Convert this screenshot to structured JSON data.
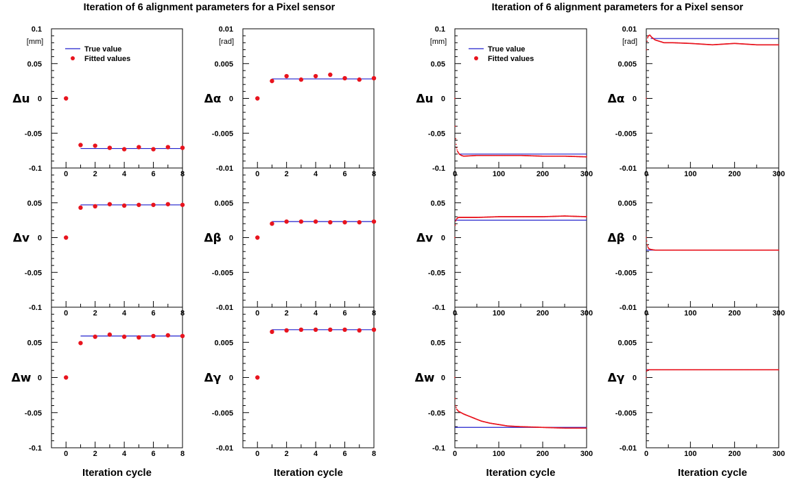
{
  "colors": {
    "true_line": "#1f1fcc",
    "fitted_points": "#e8141e",
    "axes": "#000000"
  },
  "chart_data": [
    {
      "type": "scatter",
      "title": "Iteration of 6 alignment parameters for a Pixel sensor",
      "xlabel": "Iteration cycle",
      "xlim": [
        -1,
        8
      ],
      "xticks": [
        0,
        2,
        4,
        6,
        8
      ],
      "xminor": [
        -1,
        1,
        3,
        5,
        7
      ],
      "legend": {
        "placement": "top-left",
        "true_label": "True value",
        "fitted_label": "Fitted values"
      },
      "panels": [
        {
          "ylabel": "Δu",
          "unit": "[mm]",
          "ylim": [
            -0.1,
            0.1
          ],
          "yticks": [
            -0.1,
            -0.05,
            0,
            0.05,
            0.1
          ],
          "ytick_labels": [
            "-0.1",
            "-0.05",
            "0",
            "0.05",
            "0.1"
          ],
          "true_value": -0.072,
          "true_xrange": [
            1,
            8
          ],
          "fitted": [
            [
              0,
              0
            ],
            [
              1,
              -0.067
            ],
            [
              2,
              -0.068
            ],
            [
              3,
              -0.071
            ],
            [
              4,
              -0.073
            ],
            [
              5,
              -0.07
            ],
            [
              6,
              -0.073
            ],
            [
              7,
              -0.07
            ],
            [
              8,
              -0.071
            ]
          ]
        },
        {
          "ylabel": "Δα",
          "unit": "[rad]",
          "ylim": [
            -0.01,
            0.01
          ],
          "yticks": [
            -0.01,
            -0.005,
            0,
            0.005,
            0.01
          ],
          "ytick_labels": [
            "-0.01",
            "-0.005",
            "0",
            "0.005",
            "0.01"
          ],
          "true_value": 0.0028,
          "true_xrange": [
            1,
            8
          ],
          "fitted": [
            [
              0,
              0
            ],
            [
              1,
              0.0025
            ],
            [
              2,
              0.0032
            ],
            [
              3,
              0.0027
            ],
            [
              4,
              0.0032
            ],
            [
              5,
              0.0034
            ],
            [
              6,
              0.0029
            ],
            [
              7,
              0.0027
            ],
            [
              8,
              0.0029
            ]
          ]
        },
        {
          "ylabel": "Δv",
          "unit": "",
          "ylim": [
            -0.1,
            0.1
          ],
          "yticks": [
            -0.1,
            -0.05,
            0,
            0.05,
            0.1
          ],
          "ytick_labels": [
            "-0.1",
            "-0.05",
            "0",
            "0.05",
            ""
          ],
          "true_value": 0.047,
          "true_xrange": [
            1,
            8
          ],
          "fitted": [
            [
              0,
              0
            ],
            [
              1,
              0.043
            ],
            [
              2,
              0.045
            ],
            [
              3,
              0.048
            ],
            [
              4,
              0.046
            ],
            [
              5,
              0.047
            ],
            [
              6,
              0.047
            ],
            [
              7,
              0.048
            ],
            [
              8,
              0.047
            ]
          ]
        },
        {
          "ylabel": "Δβ",
          "unit": "",
          "ylim": [
            -0.01,
            0.01
          ],
          "yticks": [
            -0.01,
            -0.005,
            0,
            0.005,
            0.01
          ],
          "ytick_labels": [
            "-0.01",
            "-0.005",
            "0",
            "0.005",
            ""
          ],
          "true_value": 0.0023,
          "true_xrange": [
            1,
            8
          ],
          "fitted": [
            [
              0,
              0
            ],
            [
              1,
              0.002
            ],
            [
              2,
              0.0023
            ],
            [
              3,
              0.0023
            ],
            [
              4,
              0.0023
            ],
            [
              5,
              0.0022
            ],
            [
              6,
              0.0022
            ],
            [
              7,
              0.0022
            ],
            [
              8,
              0.0023
            ]
          ]
        },
        {
          "ylabel": "Δw",
          "unit": "",
          "ylim": [
            -0.1,
            0.1
          ],
          "yticks": [
            -0.1,
            -0.05,
            0,
            0.05,
            0.1
          ],
          "ytick_labels": [
            "-0.1",
            "-0.05",
            "0",
            "0.05",
            ""
          ],
          "true_value": 0.059,
          "true_xrange": [
            1,
            8
          ],
          "fitted": [
            [
              0,
              0
            ],
            [
              1,
              0.049
            ],
            [
              2,
              0.058
            ],
            [
              3,
              0.061
            ],
            [
              4,
              0.058
            ],
            [
              5,
              0.057
            ],
            [
              6,
              0.059
            ],
            [
              7,
              0.06
            ],
            [
              8,
              0.059
            ]
          ]
        },
        {
          "ylabel": "Δγ",
          "unit": "",
          "ylim": [
            -0.01,
            0.01
          ],
          "yticks": [
            -0.01,
            -0.005,
            0,
            0.005,
            0.01
          ],
          "ytick_labels": [
            "-0.01",
            "-0.005",
            "0",
            "0.005",
            ""
          ],
          "true_value": 0.0068,
          "true_xrange": [
            1,
            8
          ],
          "fitted": [
            [
              0,
              0
            ],
            [
              1,
              0.0065
            ],
            [
              2,
              0.0067
            ],
            [
              3,
              0.0068
            ],
            [
              4,
              0.0068
            ],
            [
              5,
              0.0068
            ],
            [
              6,
              0.0068
            ],
            [
              7,
              0.0067
            ],
            [
              8,
              0.0068
            ]
          ]
        }
      ]
    },
    {
      "type": "scatter",
      "title": "Iteration of 6 alignment parameters for a Pixel sensor",
      "xlabel": "Iteration cycle",
      "xlim": [
        0,
        300
      ],
      "xticks": [
        0,
        100,
        200,
        300
      ],
      "xminor": [
        50,
        150,
        250
      ],
      "legend": {
        "placement": "top-left",
        "true_label": "True value",
        "fitted_label": "Fitted values"
      },
      "panels": [
        {
          "ylabel": "Δu",
          "unit": "[mm]",
          "ylim": [
            -0.1,
            0.1
          ],
          "yticks": [
            -0.1,
            -0.05,
            0,
            0.05,
            0.1
          ],
          "ytick_labels": [
            "-0.1",
            "-0.05",
            "0",
            "0.05",
            "0.1"
          ],
          "true_value": -0.08,
          "true_xrange": [
            10,
            300
          ],
          "fitted": [
            [
              0,
              0
            ],
            [
              1,
              -0.04
            ],
            [
              2,
              -0.058
            ],
            [
              3,
              -0.066
            ],
            [
              4,
              -0.071
            ],
            [
              5,
              -0.074
            ],
            [
              6,
              -0.076
            ],
            [
              8,
              -0.078
            ],
            [
              10,
              -0.08
            ],
            [
              15,
              -0.082
            ],
            [
              20,
              -0.083
            ],
            [
              50,
              -0.082
            ],
            [
              100,
              -0.082
            ],
            [
              150,
              -0.082
            ],
            [
              200,
              -0.083
            ],
            [
              250,
              -0.083
            ],
            [
              300,
              -0.084
            ]
          ]
        },
        {
          "ylabel": "Δα",
          "unit": "[rad]",
          "ylim": [
            -0.01,
            0.01
          ],
          "yticks": [
            -0.01,
            -0.005,
            0,
            0.005,
            0.01
          ],
          "ytick_labels": [
            "-0.01",
            "-0.005",
            "0",
            "0.005",
            "0.01"
          ],
          "true_value": 0.0086,
          "true_xrange": [
            10,
            300
          ],
          "fitted": [
            [
              0,
              0
            ],
            [
              1,
              0.007
            ],
            [
              2,
              0.0082
            ],
            [
              3,
              0.0087
            ],
            [
              5,
              0.009
            ],
            [
              8,
              0.0091
            ],
            [
              12,
              0.0088
            ],
            [
              20,
              0.0084
            ],
            [
              40,
              0.008
            ],
            [
              60,
              0.008
            ],
            [
              100,
              0.0079
            ],
            [
              150,
              0.0077
            ],
            [
              200,
              0.0079
            ],
            [
              250,
              0.0077
            ],
            [
              300,
              0.0077
            ]
          ]
        },
        {
          "ylabel": "Δv",
          "unit": "",
          "ylim": [
            -0.1,
            0.1
          ],
          "yticks": [
            -0.1,
            -0.05,
            0,
            0.05,
            0.1
          ],
          "ytick_labels": [
            "-0.1",
            "-0.05",
            "0",
            "0.05",
            ""
          ],
          "true_value": 0.025,
          "true_xrange": [
            0,
            300
          ],
          "fitted": [
            [
              0,
              0
            ],
            [
              1,
              0.018
            ],
            [
              2,
              0.024
            ],
            [
              4,
              0.027
            ],
            [
              8,
              0.029
            ],
            [
              20,
              0.029
            ],
            [
              50,
              0.029
            ],
            [
              100,
              0.03
            ],
            [
              150,
              0.03
            ],
            [
              200,
              0.03
            ],
            [
              250,
              0.031
            ],
            [
              300,
              0.03
            ]
          ]
        },
        {
          "ylabel": "Δβ",
          "unit": "",
          "ylim": [
            -0.01,
            0.01
          ],
          "yticks": [
            -0.01,
            -0.005,
            0,
            0.005,
            0.01
          ],
          "ytick_labels": [
            "-0.01",
            "-0.005",
            "0",
            "0.005",
            ""
          ],
          "true_value": -0.0018,
          "true_xrange": [
            0,
            300
          ],
          "fitted": [
            [
              0,
              0
            ],
            [
              1,
              -0.0005
            ],
            [
              2,
              -0.001
            ],
            [
              4,
              -0.0014
            ],
            [
              6,
              -0.0016
            ],
            [
              10,
              -0.0017
            ],
            [
              20,
              -0.0018
            ],
            [
              300,
              -0.0018
            ]
          ]
        },
        {
          "ylabel": "Δw",
          "unit": "",
          "ylim": [
            -0.1,
            0.1
          ],
          "yticks": [
            -0.1,
            -0.05,
            0,
            0.05,
            0.1
          ],
          "ytick_labels": [
            "-0.1",
            "-0.05",
            "0",
            "0.05",
            ""
          ],
          "true_value": -0.071,
          "true_xrange": [
            0,
            300
          ],
          "fitted": [
            [
              0,
              0
            ],
            [
              1,
              -0.03
            ],
            [
              2,
              -0.04
            ],
            [
              4,
              -0.045
            ],
            [
              8,
              -0.048
            ],
            [
              20,
              -0.052
            ],
            [
              40,
              -0.057
            ],
            [
              60,
              -0.062
            ],
            [
              80,
              -0.065
            ],
            [
              100,
              -0.067
            ],
            [
              120,
              -0.069
            ],
            [
              150,
              -0.07
            ],
            [
              200,
              -0.071
            ],
            [
              250,
              -0.072
            ],
            [
              300,
              -0.072
            ]
          ]
        },
        {
          "ylabel": "Δγ",
          "unit": "",
          "ylim": [
            -0.01,
            0.01
          ],
          "yticks": [
            -0.01,
            -0.005,
            0,
            0.005,
            0.01
          ],
          "ytick_labels": [
            "-0.01",
            "-0.005",
            "0",
            "0.005",
            ""
          ],
          "true_value": 0.0011,
          "true_xrange": [
            0,
            300
          ],
          "fitted": [
            [
              0,
              0
            ],
            [
              1,
              0.0009
            ],
            [
              3,
              0.0011
            ],
            [
              300,
              0.0011
            ]
          ]
        }
      ]
    }
  ]
}
